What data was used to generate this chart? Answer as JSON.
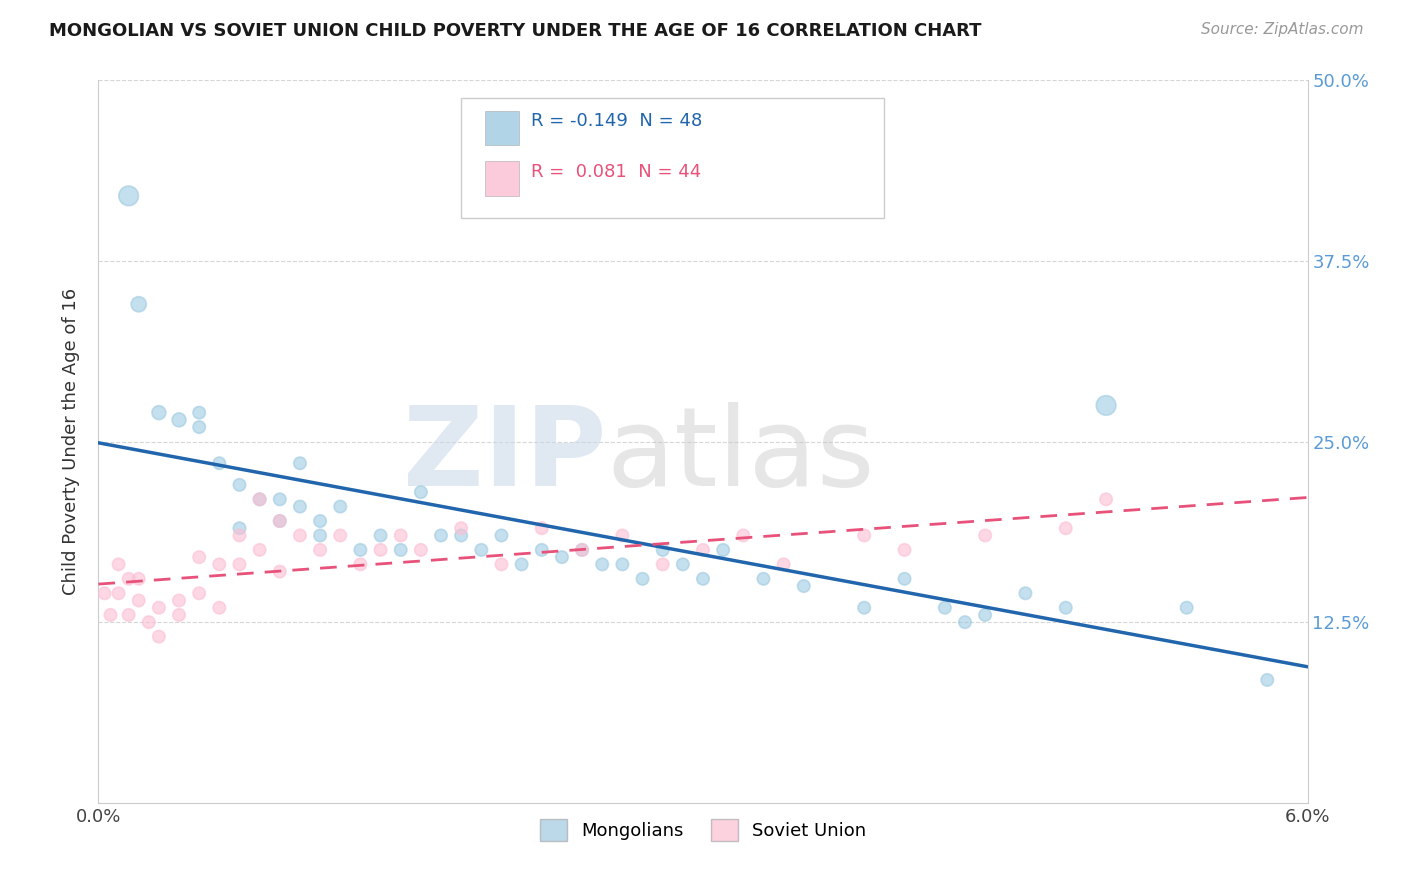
{
  "title": "MONGOLIAN VS SOVIET UNION CHILD POVERTY UNDER THE AGE OF 16 CORRELATION CHART",
  "source": "Source: ZipAtlas.com",
  "ylabel": "Child Poverty Under the Age of 16",
  "xlim": [
    0.0,
    0.06
  ],
  "ylim": [
    0.0,
    0.5
  ],
  "yticks": [
    0.0,
    0.125,
    0.25,
    0.375,
    0.5
  ],
  "yticklabels_right": [
    "",
    "12.5%",
    "25.0%",
    "37.5%",
    "50.0%"
  ],
  "mongolian_color": "#9ecae1",
  "soviet_color": "#fcbfd2",
  "mongolian_line_color": "#2166ac",
  "soviet_line_color": "#e8527a",
  "mongolian_R": -0.149,
  "mongolian_N": 48,
  "soviet_R": 0.081,
  "soviet_N": 44,
  "background_color": "#ffffff",
  "grid_color": "#cccccc",
  "mongolian_x": [
    0.0015,
    0.002,
    0.003,
    0.004,
    0.005,
    0.005,
    0.006,
    0.007,
    0.007,
    0.008,
    0.009,
    0.009,
    0.01,
    0.01,
    0.011,
    0.011,
    0.012,
    0.013,
    0.014,
    0.015,
    0.016,
    0.017,
    0.018,
    0.019,
    0.02,
    0.021,
    0.022,
    0.023,
    0.024,
    0.025,
    0.026,
    0.027,
    0.028,
    0.029,
    0.03,
    0.031,
    0.033,
    0.035,
    0.038,
    0.04,
    0.042,
    0.043,
    0.044,
    0.046,
    0.048,
    0.05,
    0.054,
    0.058
  ],
  "mongolian_y": [
    0.42,
    0.345,
    0.27,
    0.265,
    0.27,
    0.26,
    0.235,
    0.22,
    0.19,
    0.21,
    0.195,
    0.21,
    0.205,
    0.235,
    0.185,
    0.195,
    0.205,
    0.175,
    0.185,
    0.175,
    0.215,
    0.185,
    0.185,
    0.175,
    0.185,
    0.165,
    0.175,
    0.17,
    0.175,
    0.165,
    0.165,
    0.155,
    0.175,
    0.165,
    0.155,
    0.175,
    0.155,
    0.15,
    0.135,
    0.155,
    0.135,
    0.125,
    0.13,
    0.145,
    0.135,
    0.275,
    0.135,
    0.085
  ],
  "mongolian_size": [
    200,
    120,
    100,
    100,
    80,
    80,
    80,
    80,
    80,
    80,
    80,
    80,
    80,
    80,
    80,
    80,
    80,
    80,
    80,
    80,
    80,
    80,
    80,
    80,
    80,
    80,
    80,
    80,
    80,
    80,
    80,
    80,
    80,
    80,
    80,
    80,
    80,
    80,
    80,
    80,
    80,
    80,
    80,
    80,
    80,
    200,
    80,
    80
  ],
  "soviet_x": [
    0.0003,
    0.0006,
    0.001,
    0.001,
    0.0015,
    0.0015,
    0.002,
    0.002,
    0.0025,
    0.003,
    0.003,
    0.004,
    0.004,
    0.005,
    0.005,
    0.006,
    0.006,
    0.007,
    0.007,
    0.008,
    0.008,
    0.009,
    0.009,
    0.01,
    0.011,
    0.012,
    0.013,
    0.014,
    0.015,
    0.016,
    0.018,
    0.02,
    0.022,
    0.024,
    0.026,
    0.028,
    0.03,
    0.032,
    0.034,
    0.038,
    0.04,
    0.044,
    0.048,
    0.05
  ],
  "soviet_y": [
    0.145,
    0.13,
    0.165,
    0.145,
    0.155,
    0.13,
    0.155,
    0.14,
    0.125,
    0.135,
    0.115,
    0.14,
    0.13,
    0.17,
    0.145,
    0.165,
    0.135,
    0.185,
    0.165,
    0.21,
    0.175,
    0.195,
    0.16,
    0.185,
    0.175,
    0.185,
    0.165,
    0.175,
    0.185,
    0.175,
    0.19,
    0.165,
    0.19,
    0.175,
    0.185,
    0.165,
    0.175,
    0.185,
    0.165,
    0.185,
    0.175,
    0.185,
    0.19,
    0.21
  ],
  "soviet_size": [
    80,
    80,
    80,
    80,
    80,
    80,
    80,
    80,
    80,
    80,
    80,
    80,
    80,
    80,
    80,
    80,
    80,
    80,
    80,
    80,
    80,
    80,
    80,
    80,
    80,
    80,
    80,
    80,
    80,
    80,
    80,
    80,
    80,
    80,
    80,
    80,
    80,
    80,
    80,
    80,
    80,
    80,
    80,
    80
  ]
}
